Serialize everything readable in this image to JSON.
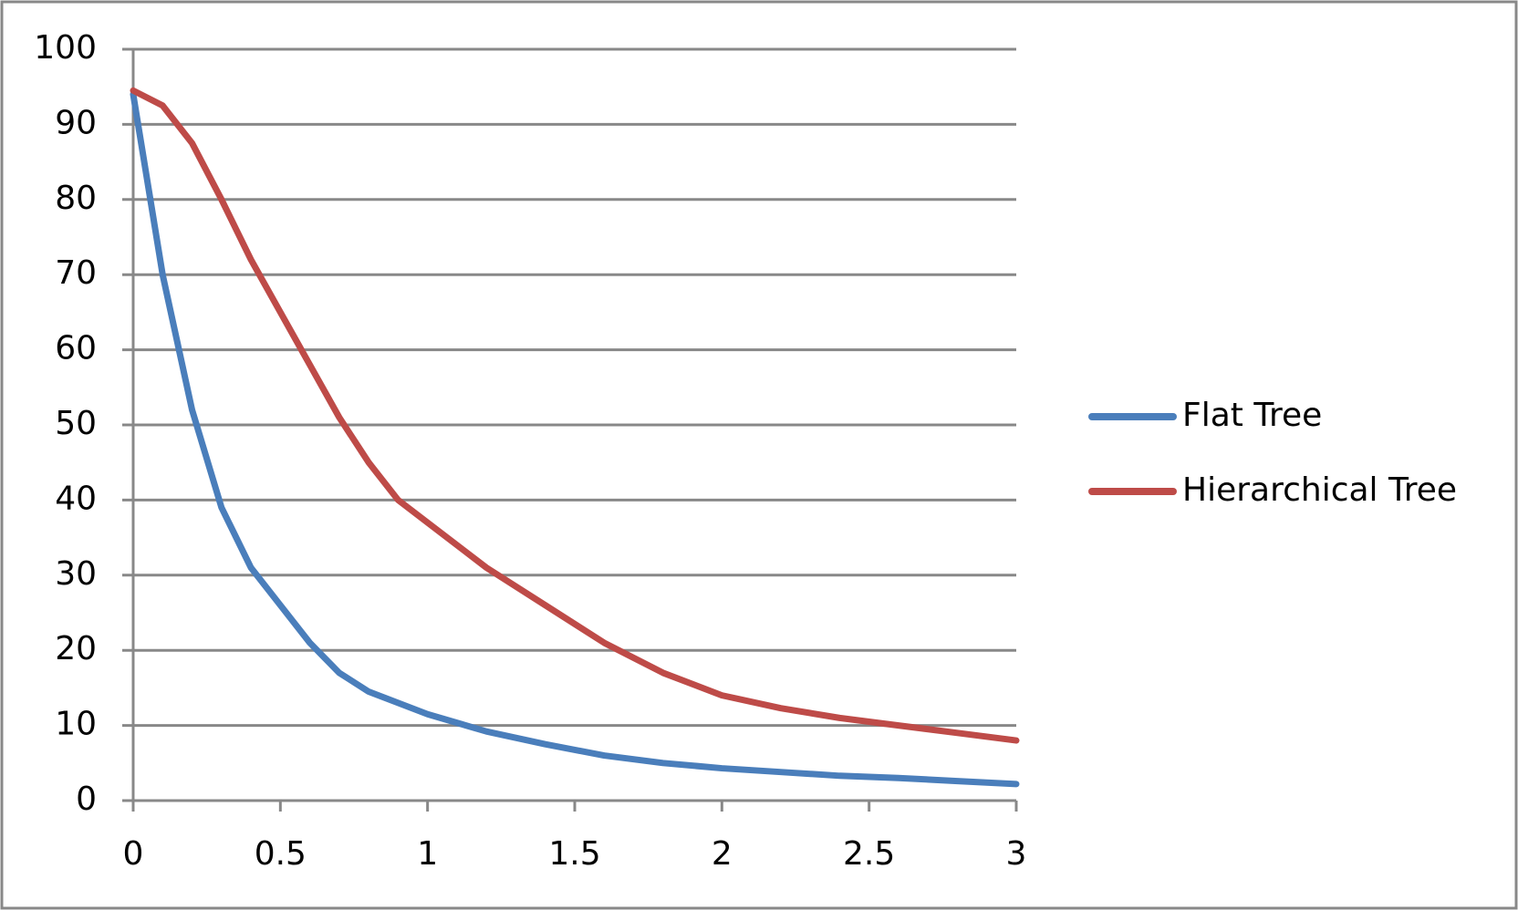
{
  "chart_data": {
    "type": "line",
    "x": [
      0,
      0.1,
      0.2,
      0.3,
      0.4,
      0.5,
      0.6,
      0.7,
      0.8,
      0.9,
      1,
      1.2,
      1.4,
      1.6,
      1.8,
      2,
      2.2,
      2.4,
      2.6,
      2.8,
      3
    ],
    "series": [
      {
        "name": "Flat Tree",
        "color": "#4a7ebb",
        "values": [
          94,
          70,
          52,
          39,
          31,
          26,
          21,
          17,
          14.5,
          13,
          11.5,
          9.2,
          7.5,
          6,
          5,
          4.3,
          3.8,
          3.3,
          3,
          2.6,
          2.2
        ]
      },
      {
        "name": "Hierarchical Tree",
        "color": "#be4b48",
        "values": [
          94.5,
          92.5,
          87.5,
          80,
          72,
          65,
          58,
          51,
          45,
          40,
          37,
          31,
          26,
          21,
          17,
          14,
          12.3,
          11,
          10,
          9,
          8
        ]
      }
    ],
    "xlim": [
      0,
      3
    ],
    "xticks": [
      0,
      0.5,
      1,
      1.5,
      2,
      2.5,
      3
    ],
    "ylim": [
      0,
      100
    ],
    "yticks": [
      0,
      10,
      20,
      30,
      40,
      50,
      60,
      70,
      80,
      90,
      100
    ],
    "grid": true,
    "legend": "right"
  }
}
